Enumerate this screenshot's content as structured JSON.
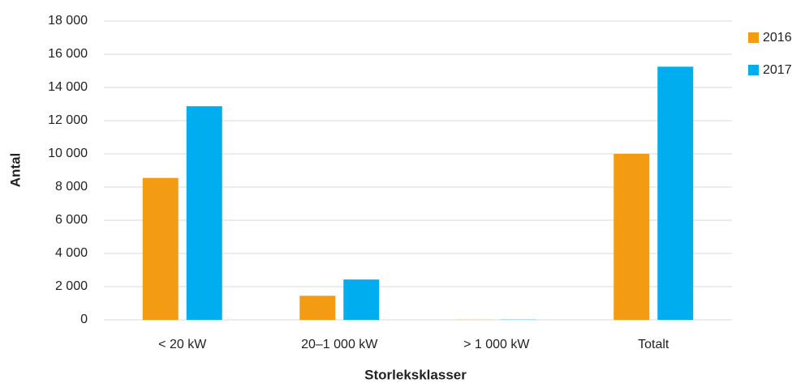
{
  "chart_data": {
    "type": "bar",
    "x_label": "Storleksklasser",
    "y_label": "Antal",
    "categories": [
      "< 20 kW",
      "20–1 000 kW",
      "> 1 000 kW",
      "Totalt"
    ],
    "series": [
      {
        "name": "2016",
        "color": "#F39B13",
        "values": [
          8550,
          1450,
          8,
          10000
        ]
      },
      {
        "name": "2017",
        "color": "#00AEEF",
        "values": [
          12870,
          2430,
          13,
          15250
        ]
      }
    ],
    "ylim": [
      0,
      18000
    ],
    "yticks": [
      0,
      {
        "value": 2000,
        "label": "2 000"
      },
      {
        "value": 4000,
        "label": "4 000"
      },
      {
        "value": 6000,
        "label": "6 000"
      },
      {
        "value": 8000,
        "label": "8 000"
      },
      {
        "value": 10000,
        "label": "10 000"
      },
      {
        "value": 12000,
        "label": "12 000"
      },
      {
        "value": 14000,
        "label": "14 000"
      },
      {
        "value": 16000,
        "label": "16 000"
      },
      {
        "value": 18000,
        "label": "18 000"
      }
    ],
    "grid": true,
    "legend": "right"
  }
}
